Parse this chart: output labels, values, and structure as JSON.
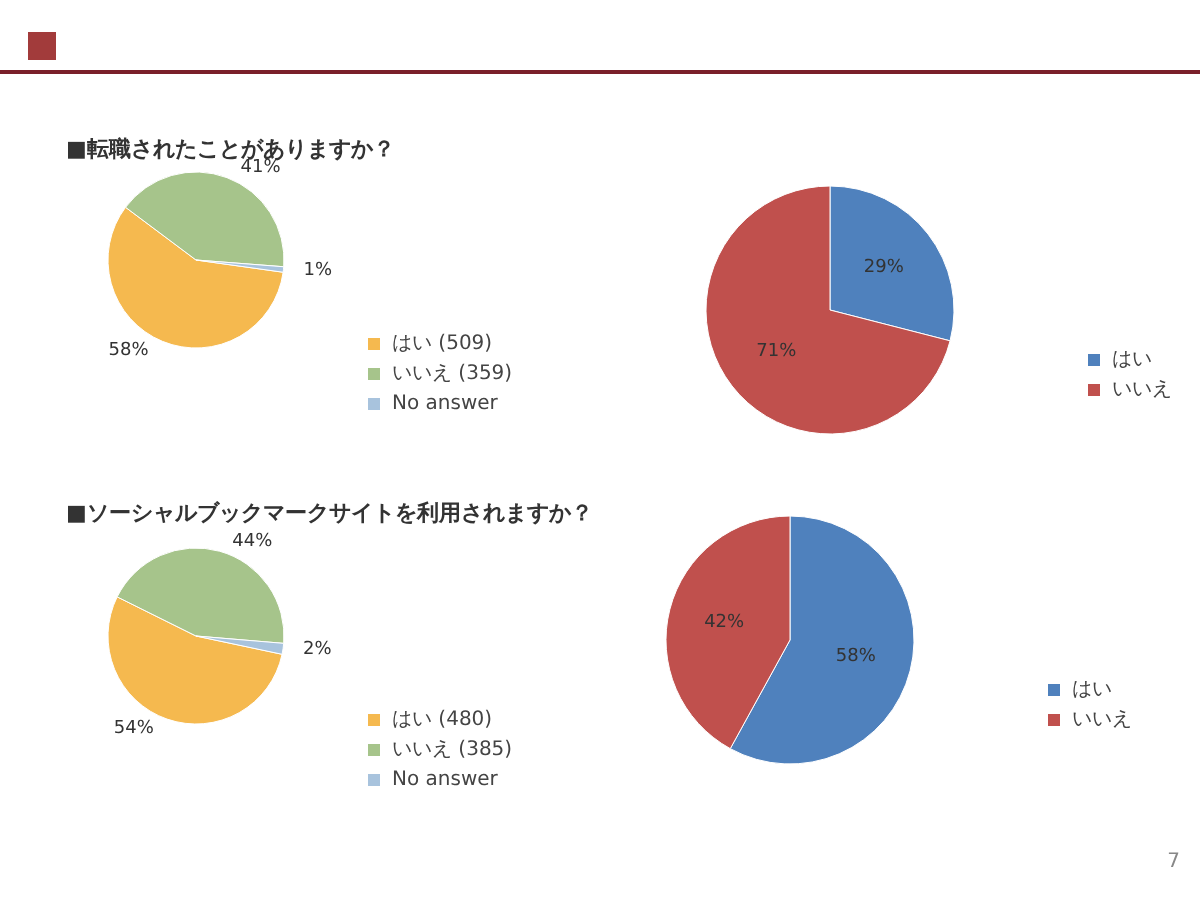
{
  "chart_data": [
    {
      "type": "pie",
      "title": "■転職されたことがありますか？",
      "categories": [
        "はい (509)",
        "いいえ (359)",
        "No answer"
      ],
      "values": [
        58,
        41,
        1
      ],
      "colors": [
        "#f5b94f",
        "#a6c48b",
        "#a8c3dd"
      ],
      "value_labels": [
        "58%",
        "41%",
        "1%"
      ],
      "legend": "bottom right"
    },
    {
      "type": "pie",
      "categories": [
        "はい",
        "いいえ"
      ],
      "values": [
        29,
        71
      ],
      "colors": [
        "#4f81bd",
        "#c0504d"
      ],
      "value_labels": [
        "29%",
        "71%"
      ],
      "legend": "right"
    },
    {
      "type": "pie",
      "title": "■ソーシャルブックマークサイトを利用されますか？",
      "categories": [
        "はい (480)",
        "いいえ (385)",
        "No answer"
      ],
      "values": [
        54,
        44,
        2
      ],
      "colors": [
        "#f5b94f",
        "#a6c48b",
        "#a8c3dd"
      ],
      "value_labels": [
        "54%",
        "44%",
        "2%"
      ],
      "legend": "bottom right"
    },
    {
      "type": "pie",
      "categories": [
        "はい",
        "いいえ"
      ],
      "values": [
        58,
        42
      ],
      "colors": [
        "#4f81bd",
        "#c0504d"
      ],
      "value_labels": [
        "58%",
        "42%"
      ],
      "legend": "right",
      "annotations": [
        "7"
      ]
    }
  ]
}
